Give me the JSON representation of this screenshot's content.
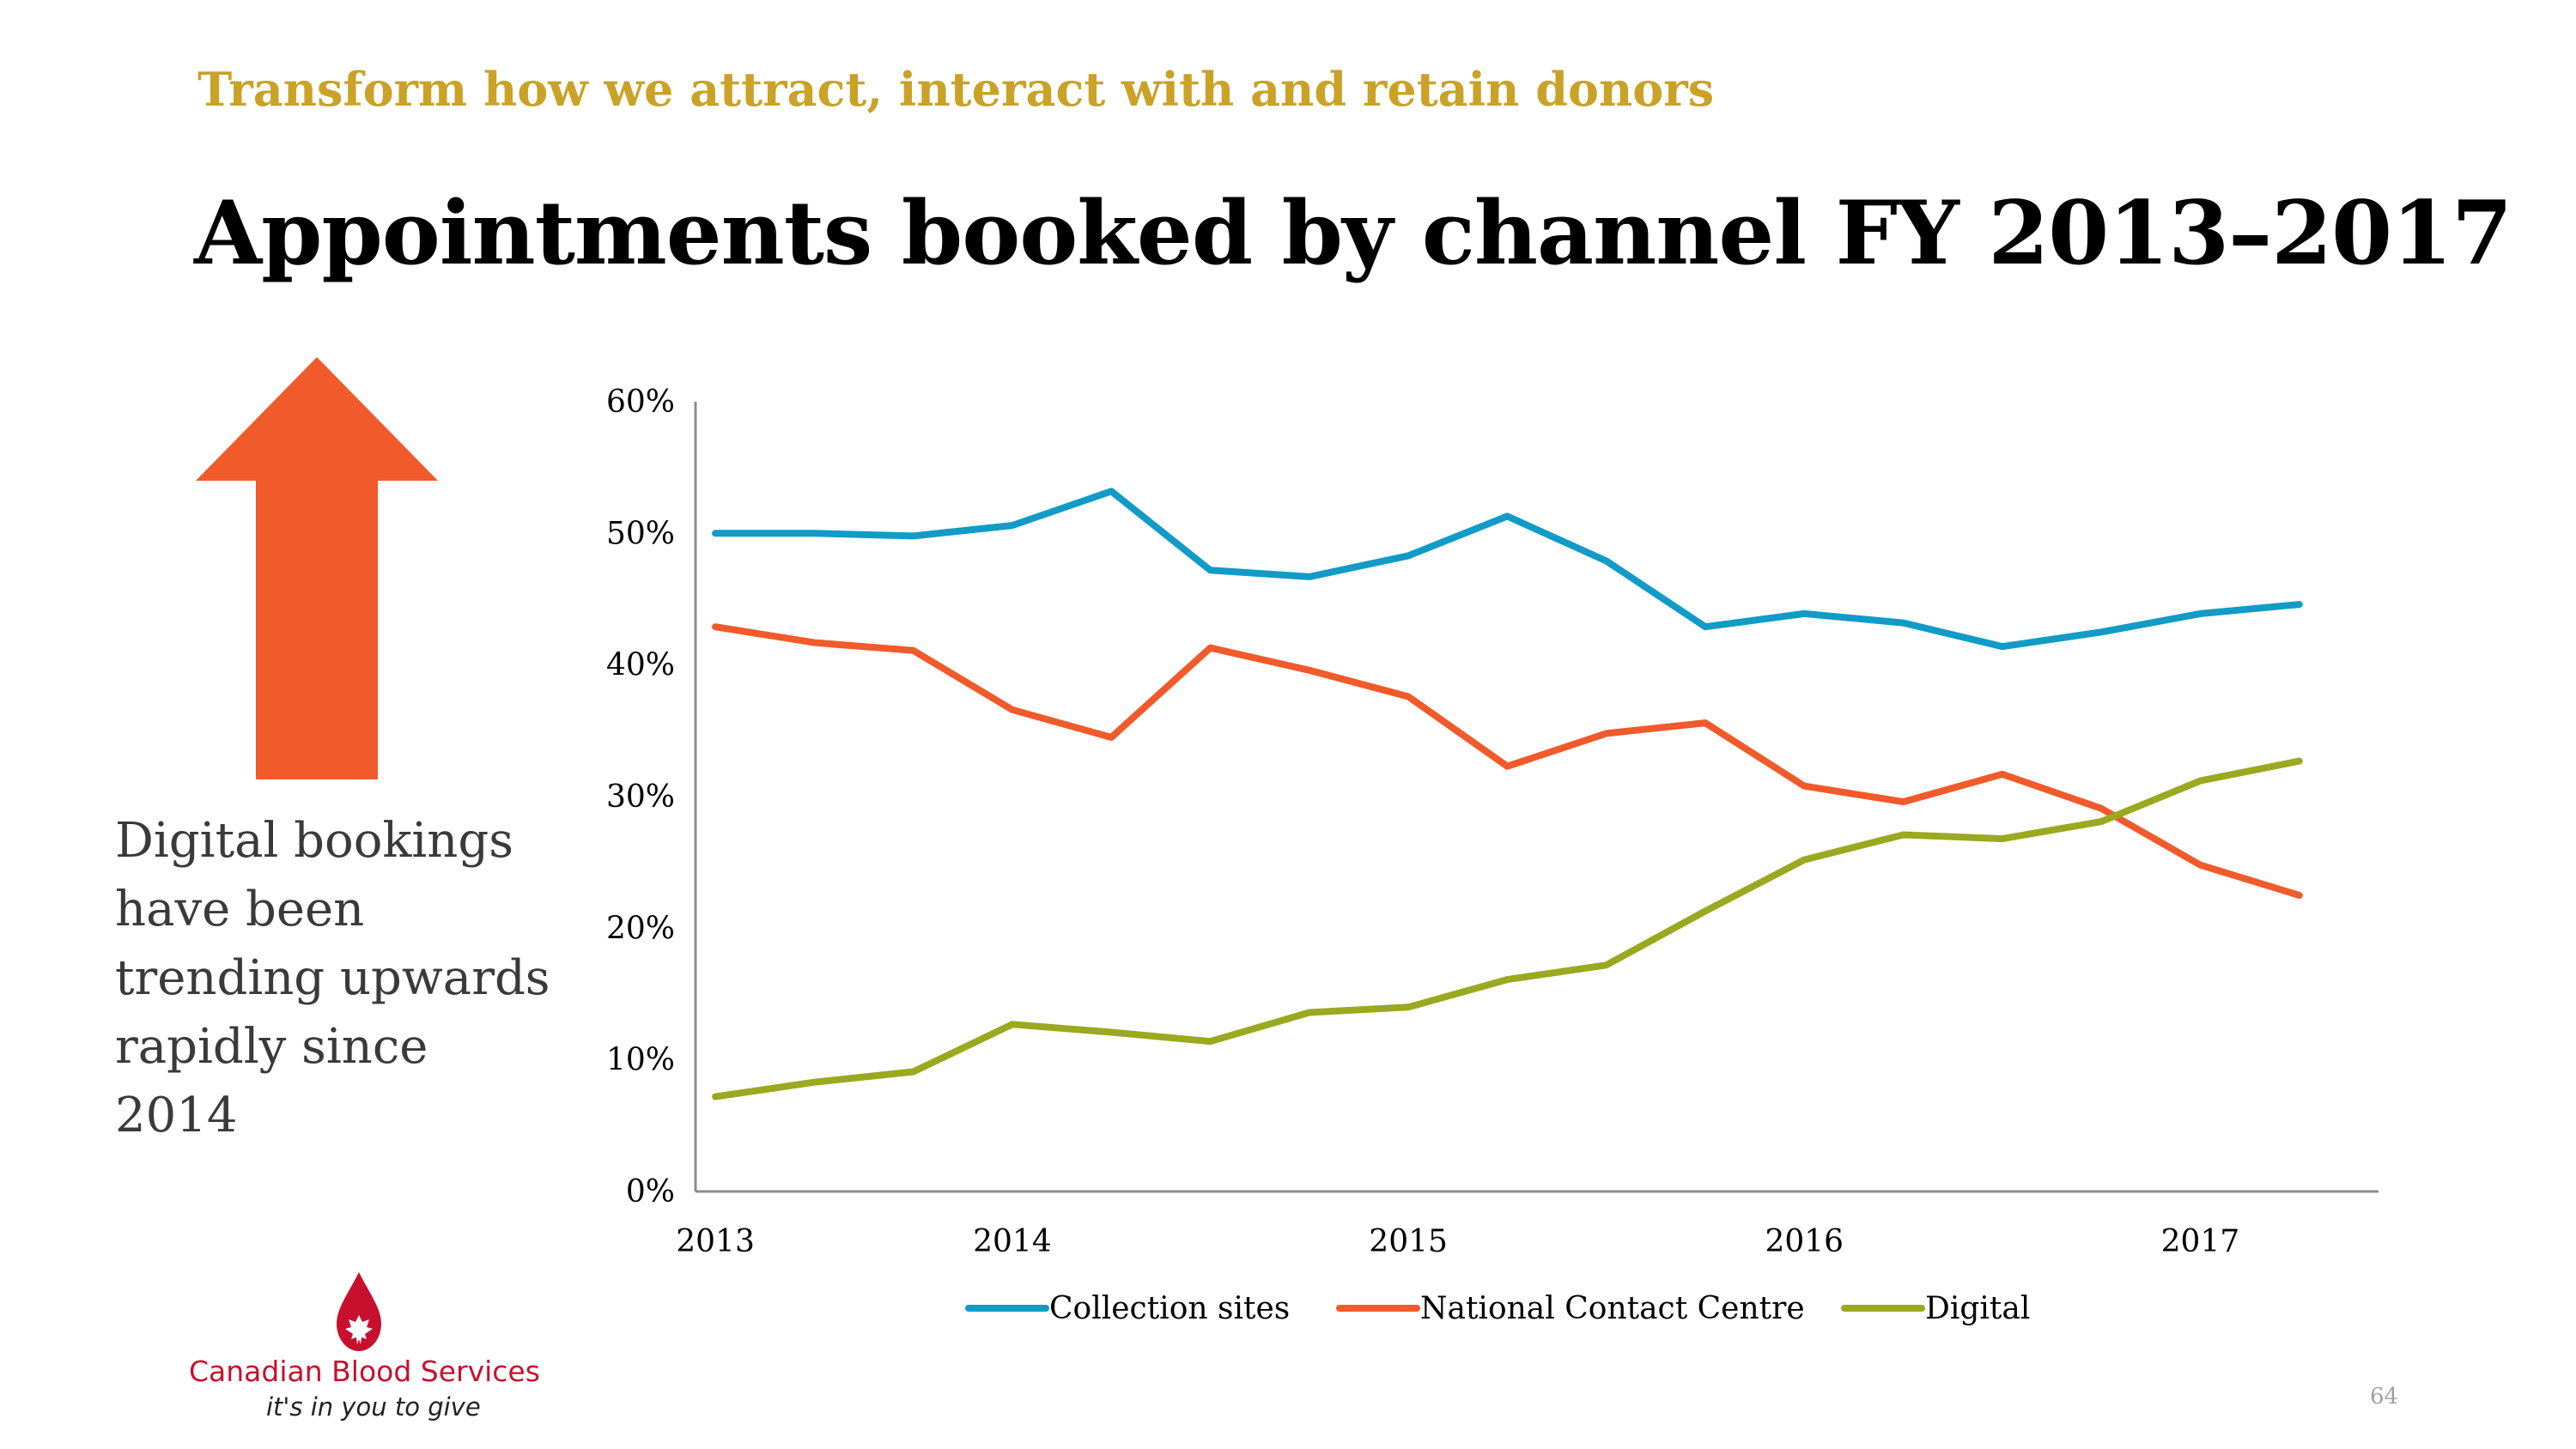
{
  "slide": {
    "kicker": "Transform how we attract, interact with and retain donors",
    "title": "Appointments booked by channel FY 2013–2017",
    "callout": "Digital bookings have been trending upwards rapidly since 2014",
    "page_number": "64"
  },
  "logo": {
    "name": "Canadian Blood Services",
    "tagline": "it's in you to give",
    "color": "#c8102e"
  },
  "arrow": {
    "direction": "up",
    "color": "#f15a2b"
  },
  "chart_data": {
    "type": "line",
    "title": "",
    "xlabel": "",
    "ylabel": "",
    "ylim": [
      0,
      60
    ],
    "y_ticks": [
      "0%",
      "10%",
      "20%",
      "30%",
      "40%",
      "50%",
      "60%"
    ],
    "x_range": [
      2012.95,
      2017.2
    ],
    "x_ticks": [
      {
        "label": "2013",
        "x": 2013.0
      },
      {
        "label": "2014",
        "x": 2013.75
      },
      {
        "label": "2015",
        "x": 2014.75
      },
      {
        "label": "2016",
        "x": 2015.75
      },
      {
        "label": "2017",
        "x": 2016.75
      }
    ],
    "x": [
      2013.0,
      2013.25,
      2013.5,
      2013.75,
      2014.0,
      2014.25,
      2014.5,
      2014.75,
      2015.0,
      2015.25,
      2015.5,
      2015.75,
      2016.0,
      2016.25,
      2016.5,
      2016.75,
      2017.0
    ],
    "grid": false,
    "legend_position": "bottom",
    "series": [
      {
        "name": "Collection sites",
        "color": "#119bc6",
        "values": [
          50.0,
          50.0,
          49.8,
          50.6,
          53.2,
          47.2,
          46.7,
          48.3,
          51.3,
          47.9,
          42.9,
          43.9,
          43.2,
          41.4,
          42.5,
          43.9,
          44.6
        ]
      },
      {
        "name": "National Contact Centre",
        "color": "#f15a2b",
        "values": [
          42.9,
          41.7,
          41.1,
          36.6,
          34.5,
          41.3,
          39.6,
          37.6,
          32.3,
          34.8,
          35.6,
          30.8,
          29.6,
          31.7,
          29.1,
          24.8,
          22.5
        ]
      },
      {
        "name": "Digital",
        "color": "#9aa920",
        "values": [
          7.2,
          8.3,
          9.1,
          12.7,
          12.1,
          11.4,
          13.6,
          14.0,
          16.1,
          17.2,
          21.3,
          25.2,
          27.1,
          26.8,
          28.1,
          31.2,
          32.7
        ]
      }
    ]
  }
}
